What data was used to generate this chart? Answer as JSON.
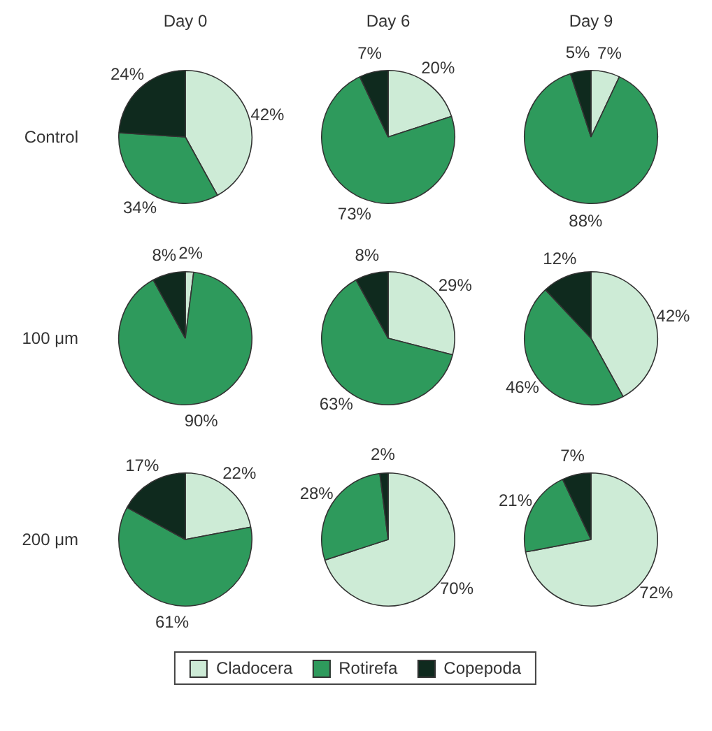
{
  "chart_data": [
    {
      "type": "pie",
      "title": "Day 0",
      "ylabel": "Control",
      "categories": [
        "Cladocera",
        "Rotirefa",
        "Copepoda"
      ],
      "values": [
        42,
        34,
        24
      ],
      "colors": [
        "#cdebd6",
        "#2e9a5c",
        "#0f2a1e"
      ],
      "value_labels": [
        "42%",
        "34%",
        "24%"
      ],
      "legend": "bottom"
    },
    {
      "type": "pie",
      "title": "Day 6",
      "categories": [
        null,
        null,
        null
      ],
      "values": [
        20,
        73,
        7
      ],
      "colors": [
        "#cdebd6",
        "#2e9a5c",
        "#0f2a1e"
      ],
      "value_labels": [
        "20%",
        "73%",
        "7%"
      ]
    },
    {
      "type": "pie",
      "title": "Day 9",
      "categories": [
        null,
        null,
        null
      ],
      "values": [
        7,
        88,
        5
      ],
      "colors": [
        "#cdebd6",
        "#2e9a5c",
        "#0f2a1e"
      ],
      "value_labels": [
        "7%",
        "88%",
        "5%"
      ]
    },
    {
      "type": "pie",
      "ylabel": "100 μm",
      "categories": [
        null,
        null,
        null
      ],
      "values": [
        2,
        90,
        8
      ],
      "colors": [
        "#cdebd6",
        "#2e9a5c",
        "#0f2a1e"
      ],
      "value_labels": [
        "2%",
        "90%",
        "8%"
      ]
    },
    {
      "type": "pie",
      "categories": [
        null,
        null,
        null
      ],
      "values": [
        29,
        63,
        8
      ],
      "colors": [
        "#cdebd6",
        "#2e9a5c",
        "#0f2a1e"
      ],
      "value_labels": [
        "29%",
        "63%",
        "8%"
      ]
    },
    {
      "type": "pie",
      "categories": [
        null,
        null,
        null
      ],
      "values": [
        42,
        46,
        12
      ],
      "colors": [
        "#cdebd6",
        "#2e9a5c",
        "#0f2a1e"
      ],
      "value_labels": [
        "42%",
        "46%",
        "12%"
      ]
    },
    {
      "type": "pie",
      "ylabel": "200 μm",
      "categories": [
        null,
        null,
        null
      ],
      "values": [
        22,
        61,
        17
      ],
      "colors": [
        "#cdebd6",
        "#2e9a5c",
        "#0f2a1e"
      ],
      "value_labels": [
        "22%",
        "61%",
        "17%"
      ]
    },
    {
      "type": "pie",
      "categories": [
        null,
        null,
        null
      ],
      "values": [
        70,
        28,
        2
      ],
      "colors": [
        "#cdebd6",
        "#2e9a5c",
        "#0f2a1e"
      ],
      "value_labels": [
        "70%",
        "28%",
        "2%"
      ]
    },
    {
      "type": "pie",
      "categories": [
        null,
        null,
        null
      ],
      "values": [
        72,
        21,
        7
      ],
      "colors": [
        "#cdebd6",
        "#2e9a5c",
        "#0f2a1e"
      ],
      "value_labels": [
        "72%",
        "21%",
        "7%"
      ]
    }
  ]
}
